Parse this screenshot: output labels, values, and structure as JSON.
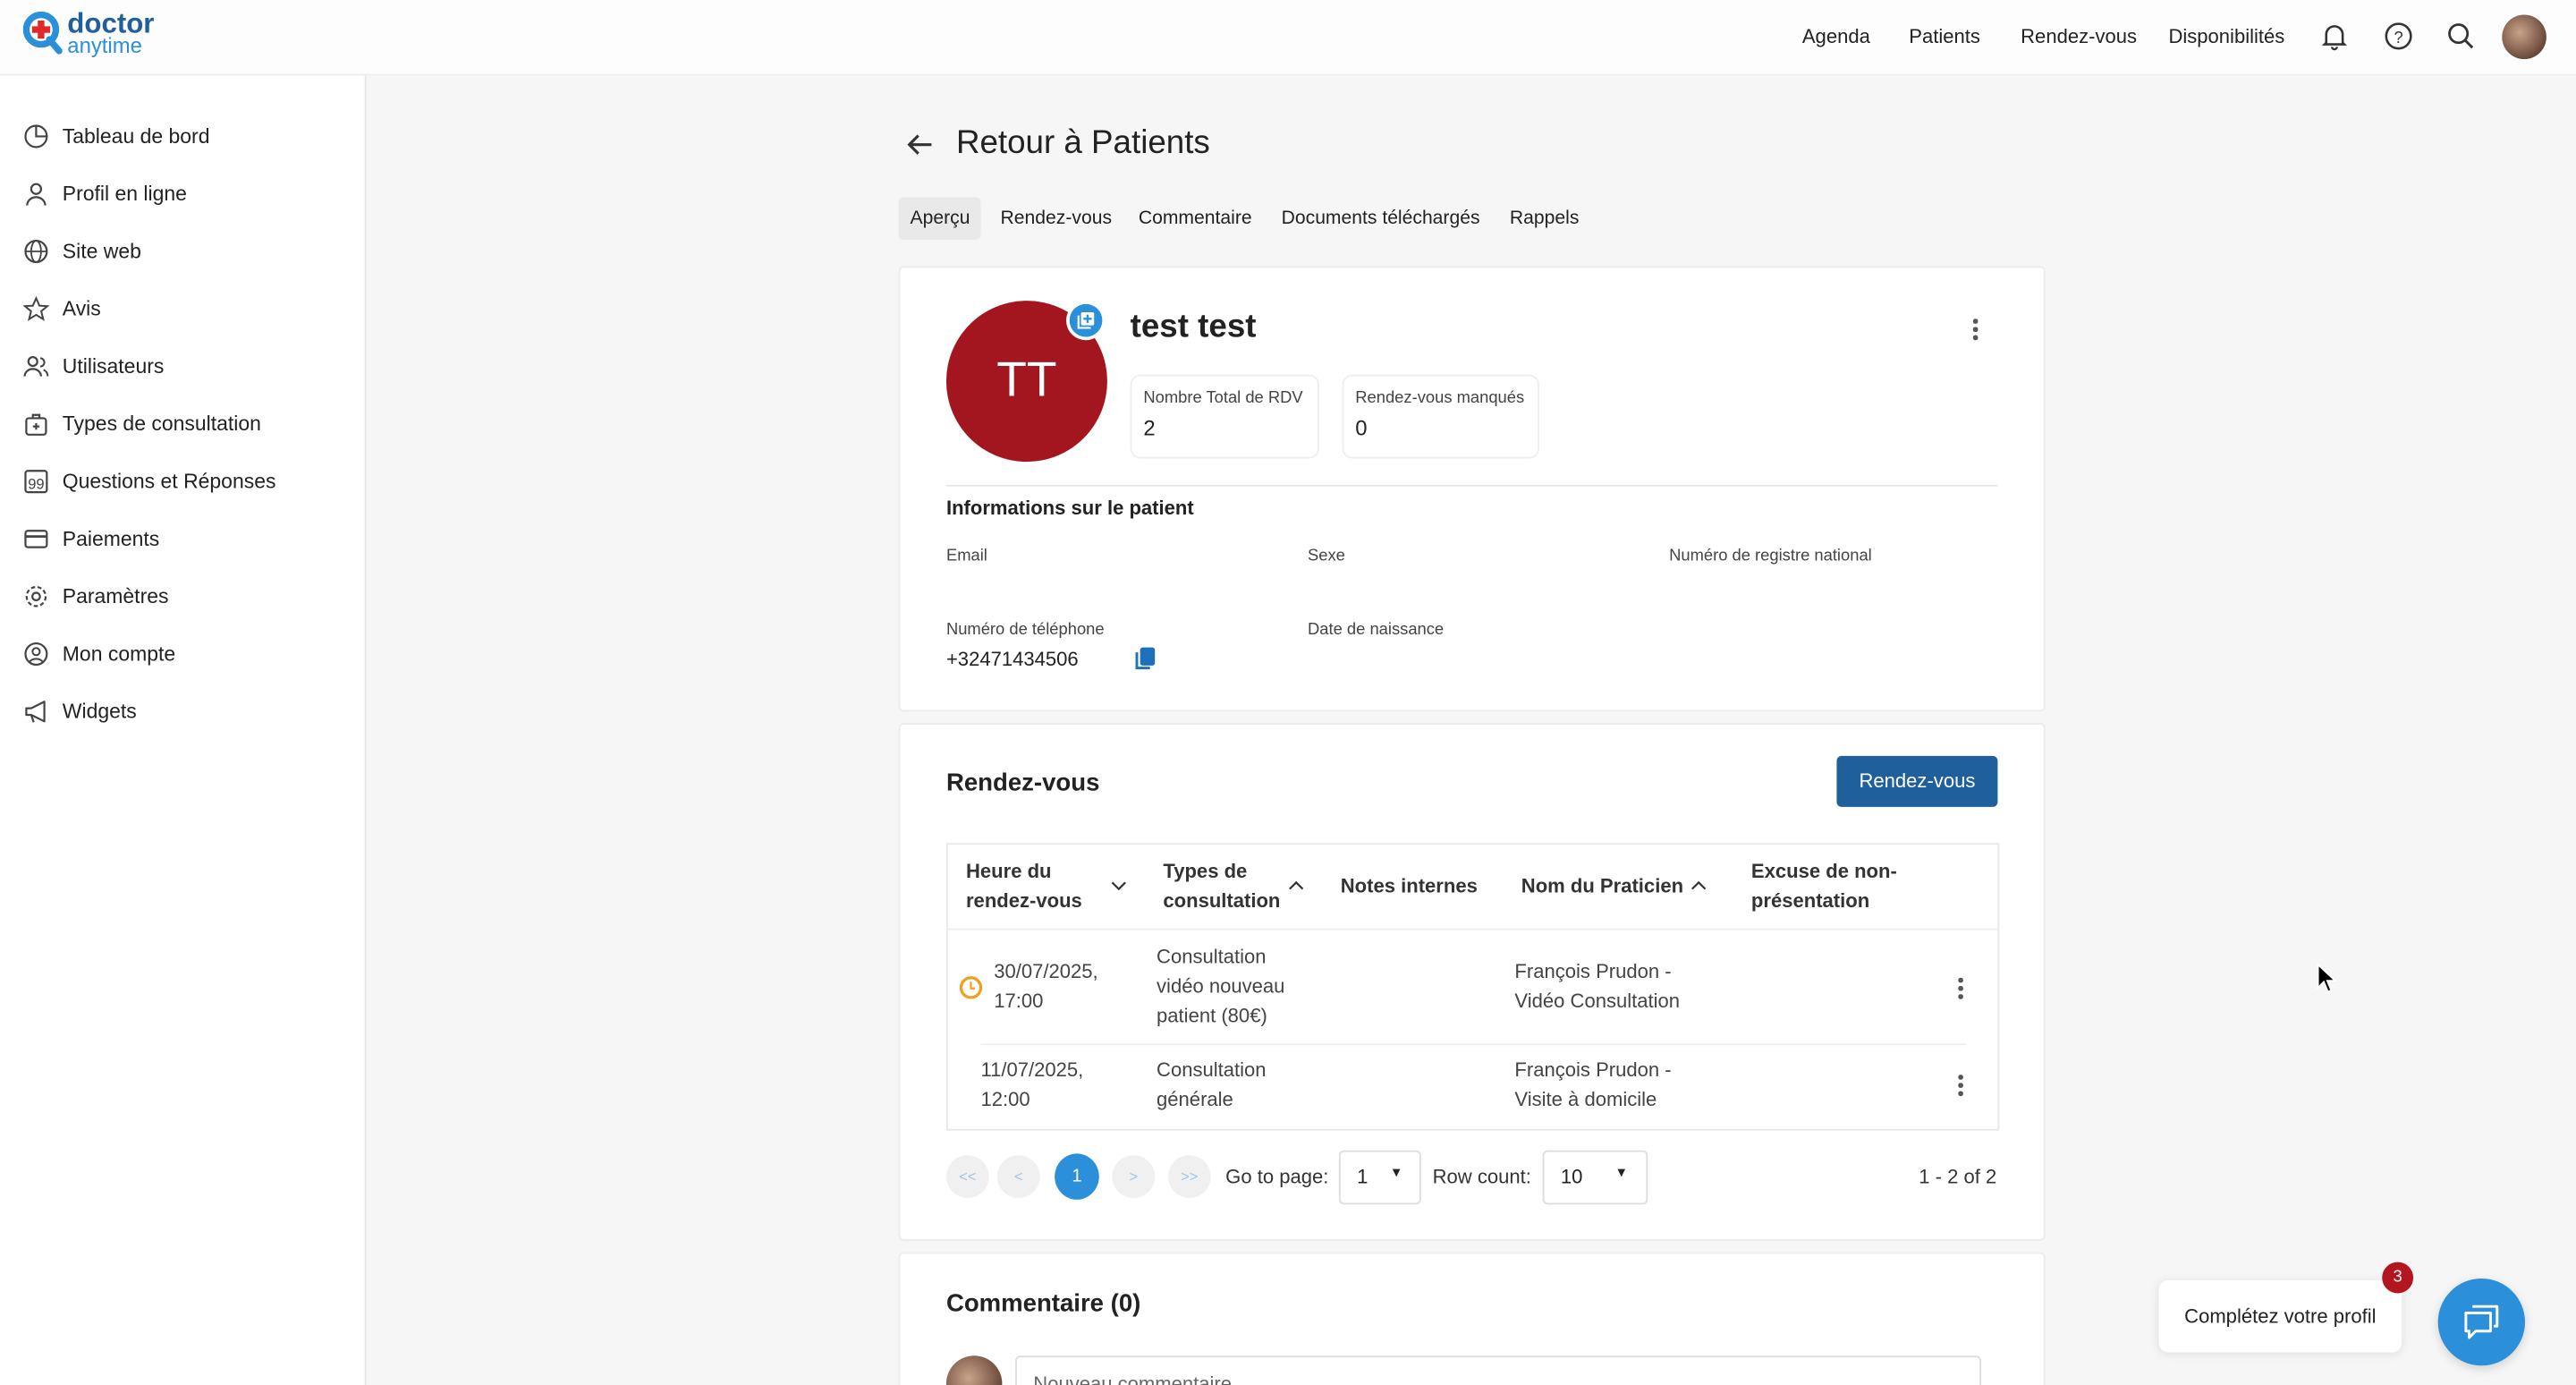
{
  "brand": {
    "line1": "doctor",
    "line2": "anytime",
    "primary": "#1f5f9c",
    "accent": "#2b8fd9",
    "cross": "#e02a2a"
  },
  "topnav": {
    "items": [
      "Agenda",
      "Patients",
      "Rendez-vous",
      "Disponibilités"
    ],
    "icons": [
      "bell-icon",
      "help-icon",
      "search-icon",
      "user-avatar"
    ]
  },
  "sidebar": {
    "items": [
      {
        "label": "Tableau de bord",
        "icon": "dashboard-icon"
      },
      {
        "label": "Profil en ligne",
        "icon": "user-icon"
      },
      {
        "label": "Site web",
        "icon": "globe-icon"
      },
      {
        "label": "Avis",
        "icon": "star-icon"
      },
      {
        "label": "Utilisateurs",
        "icon": "users-icon"
      },
      {
        "label": "Types de consultation",
        "icon": "medical-bag-icon"
      },
      {
        "label": "Questions et Réponses",
        "icon": "quote-icon"
      },
      {
        "label": "Paiements",
        "icon": "credit-card-icon"
      },
      {
        "label": "Paramètres",
        "icon": "gear-icon"
      },
      {
        "label": "Mon compte",
        "icon": "account-circle-icon"
      },
      {
        "label": "Widgets",
        "icon": "megaphone-icon"
      }
    ]
  },
  "page": {
    "back_title": "Retour à Patients",
    "tabs": [
      "Aperçu",
      "Rendez-vous",
      "Commentaire",
      "Documents téléchargés",
      "Rappels"
    ],
    "active_tab": "Aperçu"
  },
  "patient": {
    "initials": "TT",
    "name": "test test",
    "avatar_color": "#a3161f",
    "stats": [
      {
        "label": "Nombre Total de RDV",
        "value": "2"
      },
      {
        "label": "Rendez-vous manqués",
        "value": "0"
      }
    ],
    "info_title": "Informations sur le patient",
    "fields": {
      "email": "Email",
      "sexe": "Sexe",
      "registre": "Numéro de registre national",
      "phone_label": "Numéro de téléphone",
      "phone": "+32471434506",
      "birth": "Date de naissance"
    }
  },
  "appointments": {
    "title": "Rendez-vous",
    "button": "Rendez-vous",
    "button_color": "#1f5f9c",
    "columns": [
      {
        "l1": "Heure du",
        "l2": "rendez-vous",
        "sort": "down"
      },
      {
        "l1": "Types de",
        "l2": "consultation",
        "sort": "up"
      },
      {
        "l1": "Notes internes"
      },
      {
        "l1": "Nom du Praticien",
        "sort": "up"
      },
      {
        "l1": "Excuse de non-",
        "l2": "présentation"
      }
    ],
    "rows": [
      {
        "date": "30/07/2025,",
        "time": "17:00",
        "type": [
          "Consultation",
          "vidéo nouveau",
          "patient (80€)"
        ],
        "notes": "",
        "practitioner": [
          "François Prudon -",
          "Vidéo Consultation"
        ],
        "excuse": "",
        "status_icon": "clock-icon",
        "status_color": "#f0a020"
      },
      {
        "date": "11/07/2025,",
        "time": "12:00",
        "type": [
          "Consultation",
          "générale"
        ],
        "notes": "",
        "practitioner": [
          "François Prudon -",
          "Visite à domicile"
        ],
        "excuse": ""
      }
    ],
    "pagination": {
      "first": "<<",
      "prev": "<",
      "current": "1",
      "next": ">",
      "last": ">>",
      "goto_label": "Go to page:",
      "goto_value": "1",
      "rowcount_label": "Row count:",
      "rowcount_value": "10",
      "summary": "1 - 2 of 2"
    }
  },
  "comments": {
    "title": "Commentaire (0)",
    "placeholder": "Nouveau commentaire"
  },
  "widget": {
    "profile_label": "Complétez votre profil",
    "badge": "3",
    "badge_color": "#b3161f",
    "chat_color": "#2b8fd9"
  }
}
